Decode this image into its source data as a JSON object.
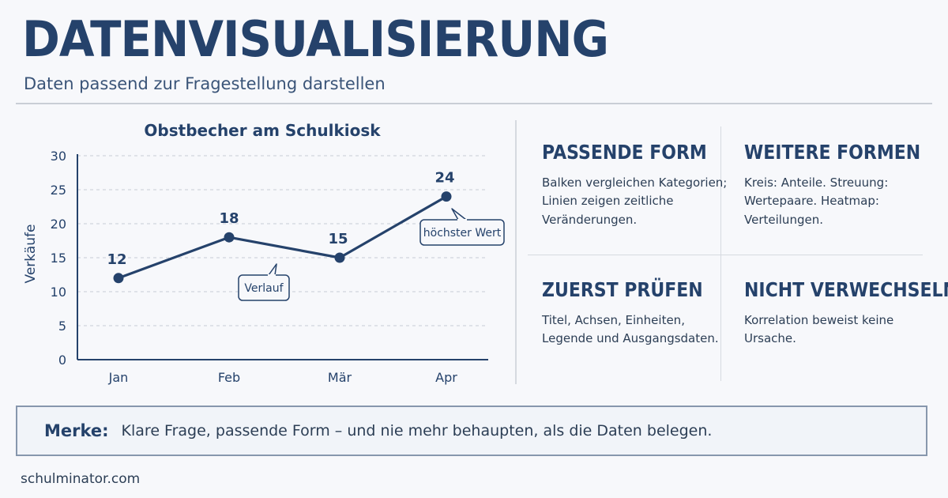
{
  "header": {
    "title": "DATENVISUALISIERUNG",
    "subtitle": "Daten passend zur Fragestellung darstellen"
  },
  "chart_data": {
    "type": "line",
    "title": "Obstbecher am Schulkiosk",
    "xlabel": "",
    "ylabel": "Verkäufe",
    "categories": [
      "Jan",
      "Feb",
      "Mär",
      "Apr"
    ],
    "series": [
      {
        "values": [
          12,
          18,
          15,
          24
        ]
      }
    ],
    "ylim": [
      0,
      30
    ],
    "yticks": [
      0,
      5,
      10,
      15,
      20,
      25,
      30
    ],
    "grid": "horizontal-dashed",
    "data_labels": true,
    "line_color": "#25426b",
    "annotations": [
      {
        "text": "Verlauf",
        "target": "segment Feb–Mär"
      },
      {
        "text": "höchster Wert",
        "target": "Apr"
      }
    ]
  },
  "cards": [
    {
      "title": "PASSENDE FORM",
      "text": "Balken vergleichen Kategorien; Linien zeigen zeitliche Veränderungen."
    },
    {
      "title": "WEITERE FORMEN",
      "text": "Kreis: Anteile. Streuung: Wertepaare. Heatmap: Verteilungen."
    },
    {
      "title": "ZUERST PRÜFEN",
      "text": "Titel, Achsen, Einheiten, Legende und Ausgangsdaten."
    },
    {
      "title": "NICHT VERWECHSELN",
      "text": "Korrelation beweist keine Ursache."
    }
  ],
  "note": {
    "label": "Merke:",
    "text": "Klare Frage, passende Form – und nie mehr behaupten, als die Daten belegen."
  },
  "footer": {
    "text": "schulminator.com"
  },
  "colors": {
    "accent": "#25426b",
    "grid": "#c7ccd4",
    "background": "#f7f8fb"
  }
}
